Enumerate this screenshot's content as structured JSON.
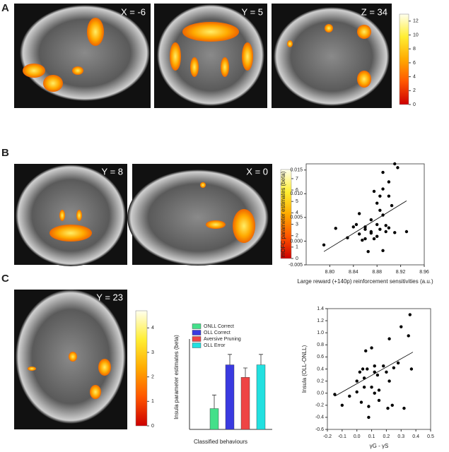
{
  "panels": [
    {
      "label": "A",
      "images": [
        "X = -6",
        "Y = 5",
        "Z = 34"
      ]
    },
    {
      "label": "B",
      "images": [
        "Y = 8",
        "X = 0"
      ]
    },
    {
      "label": "C",
      "images": [
        "Y = 23"
      ]
    }
  ],
  "chart_data": [
    {
      "type": "colorbar",
      "colormap": [
        "#cc0000",
        "#ff5500",
        "#ffaa00",
        "#ffee33",
        "#ffffee"
      ],
      "ylim": [
        0,
        13
      ],
      "yticks": [
        0,
        2,
        4,
        6,
        8,
        10,
        12
      ]
    },
    {
      "type": "colorbar",
      "colormap": [
        "#cc0000",
        "#ff5500",
        "#ffaa00",
        "#ffee33",
        "#ffffee"
      ],
      "ylim": [
        0,
        7.8
      ],
      "yticks": [
        0,
        1,
        2,
        3,
        4,
        5,
        6,
        7
      ]
    },
    {
      "type": "scatter",
      "xlabel": "Large reward (+140p) reinforcement sensitivities (a.u.)",
      "ylabel": "mOFC parameter estimates (beta)",
      "color": "#000000",
      "x": [
        8.79,
        8.81,
        8.83,
        8.84,
        8.845,
        8.85,
        8.85,
        8.855,
        8.86,
        8.86,
        8.865,
        8.87,
        8.87,
        8.875,
        8.875,
        8.88,
        8.88,
        8.88,
        8.885,
        8.885,
        8.885,
        8.89,
        8.89,
        8.89,
        8.89,
        8.895,
        8.895,
        8.9,
        8.9,
        8.9,
        8.905,
        8.91,
        8.91,
        8.915,
        8.93,
        8.87,
        8.86
      ],
      "y": [
        -0.0008,
        0.0027,
        0.0007,
        0.003,
        0.0035,
        0.0058,
        0.0015,
        0.0002,
        0.0025,
        0.003,
        -0.0022,
        0.0045,
        0.0017,
        0.0105,
        0.0005,
        0.008,
        0.0035,
        0.001,
        0.0095,
        0.0065,
        0.0025,
        0.0145,
        0.011,
        0.0055,
        -0.002,
        0.0033,
        0.002,
        0.0125,
        0.0095,
        0.0028,
        0.0075,
        0.0163,
        0.0018,
        0.0155,
        0.002,
        0.002,
        0.0005
      ],
      "trend": {
        "x": [
          8.79,
          8.93
        ],
        "y": [
          -0.0022,
          0.0085
        ]
      },
      "xlim": [
        8.76,
        8.96
      ],
      "xticks": [
        {
          "value": 8.8,
          "label": "8.80"
        },
        8.84,
        8.88,
        8.92,
        8.96
      ],
      "ylim": [
        -0.005,
        0.0163
      ],
      "yticks": [
        -0.005,
        {
          "value": 0,
          "label": "0.000"
        },
        0.005,
        {
          "value": 0.01,
          "label": "0.010"
        },
        0.015
      ]
    },
    {
      "type": "colorbar",
      "colormap": [
        "#cc0000",
        "#ff5500",
        "#ffaa00",
        "#ffee33",
        "#ffffee"
      ],
      "ylim": [
        0,
        4.7
      ],
      "yticks": [
        0,
        1,
        2,
        3,
        4
      ]
    },
    {
      "type": "bar",
      "xlabel": "Classified behaviours",
      "ylabel": "Insula parameter estimates (beta)",
      "series": [
        {
          "name": "ONLL Correct",
          "color": "#44e08a",
          "value": 1.0,
          "error": 0.65
        },
        {
          "name": "OLL Correct",
          "color": "#3a3ae0",
          "value": 3.1,
          "error": 0.5
        },
        {
          "name": "Aversive Pruning",
          "color": "#ee4444",
          "value": 2.5,
          "error": 0.45
        },
        {
          "name": "OLL Error",
          "color": "#22e0e0",
          "value": 3.1,
          "error": 0.5
        }
      ],
      "ylim": [
        0,
        4
      ]
    },
    {
      "type": "scatter",
      "xlabel": "γG - γS",
      "ylabel": "Insula (OLL-ONLL)",
      "color": "#000000",
      "x": [
        -0.15,
        -0.1,
        -0.05,
        0,
        0,
        0.02,
        0.03,
        0.04,
        0.05,
        0.05,
        0.06,
        0.07,
        0.08,
        0.08,
        0.1,
        0.1,
        0.12,
        0.12,
        0.14,
        0.15,
        0.15,
        0.18,
        0.2,
        0.21,
        0.22,
        0.22,
        0.24,
        0.25,
        0.28,
        0.3,
        0.32,
        0.35,
        0.36,
        0.37,
        0.12
      ],
      "y": [
        -0.02,
        -0.2,
        -0.05,
        0.02,
        0.2,
        0.35,
        -0.15,
        0.4,
        0.1,
        0.25,
        0.7,
        0.4,
        -0.22,
        -0.4,
        0.75,
        0.1,
        0.45,
        0.35,
        0.3,
        0.05,
        -0.12,
        0.45,
        0.35,
        -0.25,
        0.9,
        0.2,
        -0.2,
        0.42,
        0.5,
        1.1,
        -0.25,
        0.95,
        1.3,
        0.4,
        0
      ],
      "trend": {
        "x": [
          -0.15,
          0.38
        ],
        "y": [
          -0.05,
          0.68
        ]
      },
      "xlim": [
        -0.2,
        0.5
      ],
      "xticks": [
        -0.2,
        -0.1,
        {
          "value": 0,
          "label": "0.0"
        },
        0.1,
        0.2,
        0.3,
        0.4,
        0.5
      ],
      "ylim": [
        -0.6,
        1.4
      ],
      "yticks": [
        -0.6,
        -0.4,
        -0.2,
        {
          "value": 0,
          "label": "0.0"
        },
        0.2,
        0.4,
        0.6,
        0.8,
        {
          "value": 1,
          "label": "1.0"
        },
        1.2,
        1.4
      ]
    }
  ]
}
